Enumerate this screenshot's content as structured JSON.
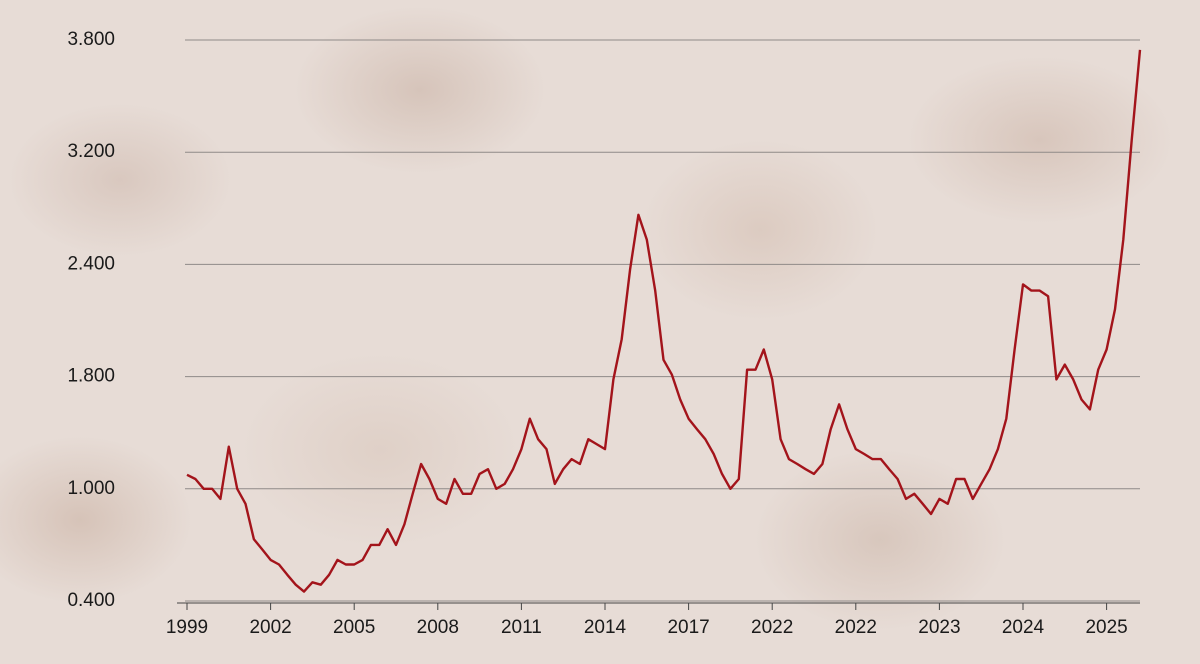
{
  "chart_data": {
    "type": "line",
    "categories": [
      "1999",
      null,
      null,
      null,
      null,
      null,
      null,
      null,
      null,
      null,
      "2002",
      null,
      null,
      null,
      null,
      null,
      null,
      null,
      null,
      null,
      "2005",
      null,
      null,
      null,
      null,
      null,
      null,
      null,
      null,
      null,
      "2008",
      null,
      null,
      null,
      null,
      null,
      null,
      null,
      null,
      null,
      "2011",
      null,
      null,
      null,
      null,
      null,
      null,
      null,
      null,
      null,
      "2014",
      null,
      null,
      null,
      null,
      null,
      null,
      null,
      null,
      null,
      "2017",
      null,
      null,
      null,
      null,
      null,
      null,
      null,
      null,
      null,
      "2022",
      null,
      null,
      null,
      null,
      null,
      null,
      null,
      null,
      null,
      "2022",
      null,
      null,
      null,
      null,
      null,
      null,
      null,
      null,
      null,
      "2023",
      null,
      null,
      null,
      null,
      null,
      null,
      null,
      null,
      null,
      "2024",
      null,
      null,
      null,
      null,
      null,
      null,
      null,
      null,
      null,
      "2025",
      null,
      null,
      null,
      null
    ],
    "values": [
      1100,
      1070,
      1000,
      1000,
      946,
      1300,
      1000,
      920,
      730,
      676,
      620,
      595,
      540,
      487,
      450,
      500,
      487,
      540,
      620,
      595,
      595,
      620,
      700,
      700,
      784,
      700,
      810,
      973,
      1177,
      1070,
      946,
      920,
      1070,
      973,
      973,
      1106,
      1140,
      1000,
      1035,
      1140,
      1283,
      1500,
      1354,
      1283,
      1035,
      1140,
      1212,
      1177,
      1354,
      1319,
      1283,
      1780,
      2000,
      2374,
      2754,
      2577,
      2260,
      1890,
      1810,
      1637,
      1500,
      1425,
      1354,
      1248,
      1106,
      1000,
      1070,
      1837,
      1837,
      1945,
      1780,
      1354,
      1212,
      1177,
      1140,
      1106,
      1177,
      1425,
      1602,
      1425,
      1283,
      1248,
      1212,
      1212,
      1140,
      1070,
      946,
      973,
      920,
      865,
      946,
      920,
      1070,
      1070,
      946,
      1035,
      1140,
      1283,
      1500,
      1945,
      2293,
      2260,
      2260,
      2230,
      1780,
      1864,
      1780,
      1637,
      1566,
      1837,
      1945,
      2160,
      2577,
      3264,
      3747
    ],
    "color": "#a3141b",
    "ylim": [
      400,
      3800
    ],
    "yticks": [
      {
        "value": 3800,
        "label": "3.800"
      },
      {
        "value": 3200,
        "label": "3.200"
      },
      {
        "value": 2400,
        "label": "2.400"
      },
      {
        "value": 1800,
        "label": "1.800"
      },
      {
        "value": 1000,
        "label": "1.000"
      },
      {
        "value": 400,
        "label": "0.400"
      }
    ],
    "grid": true
  }
}
